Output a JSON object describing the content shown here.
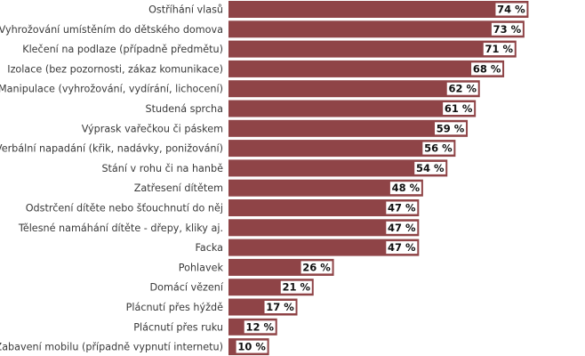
{
  "chart_data": {
    "type": "bar",
    "orientation": "horizontal",
    "categories": [
      "Ostříhání vlasů",
      "Vyhrožování umístěním do dětského domova",
      "Klečení na podlaze (případně předmětu)",
      "Izolace (bez pozornosti, zákaz komunikace)",
      "Manipulace (vyhrožování, vydírání, lichocení)",
      "Studená sprcha",
      "Výprask vařečkou či páskem",
      "Verbální napadání (křik, nadávky, ponižování)",
      "Stání v rohu či na hanbě",
      "Zatřesení dítětem",
      "Odstrčení dítěte nebo šťouchnutí do něj",
      "Tělesné namáhání dítěte - dřepy, kliky aj.",
      "Facka",
      "Pohlavek",
      "Domácí vězení",
      "Plácnutí přes hýždě",
      "Plácnutí přes ruku",
      "Zabavení mobilu (případně vypnutí internetu)"
    ],
    "values": [
      74,
      73,
      71,
      68,
      62,
      61,
      59,
      56,
      54,
      48,
      47,
      47,
      47,
      26,
      21,
      17,
      12,
      10
    ],
    "value_suffix": " %",
    "xlim": [
      0,
      100
    ],
    "grid": false,
    "legend": "none",
    "colors": {
      "bar": "#8f4447",
      "value_label_bg": "#ffffff",
      "text": "#3a3a3a"
    }
  }
}
